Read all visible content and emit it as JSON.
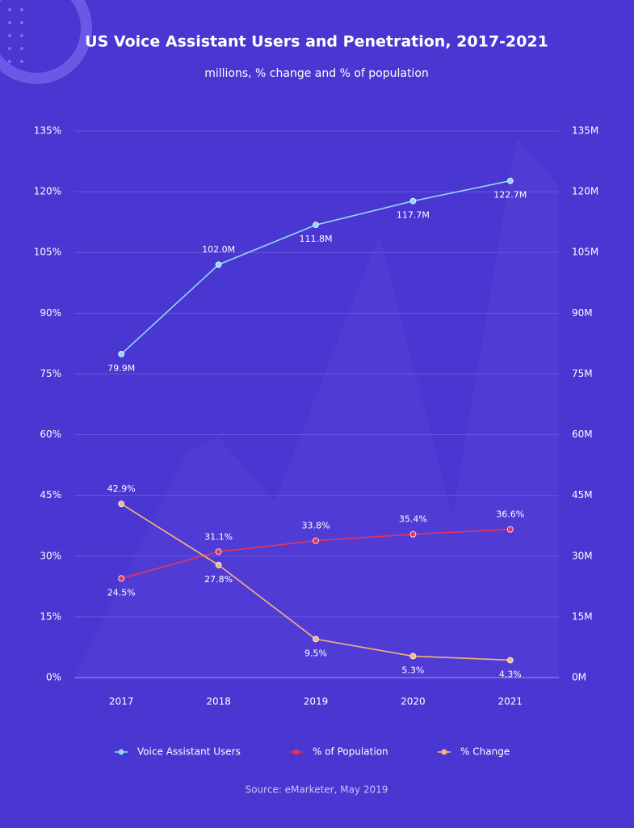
{
  "chart_data": {
    "type": "line",
    "title": "US Voice Assistant Users and Penetration, 2017-2021",
    "subtitle": "millions, % change and % of population",
    "source": "Source: eMarketer, May 2019",
    "categories": [
      "2017",
      "2018",
      "2019",
      "2020",
      "2021"
    ],
    "series": [
      {
        "name": "Voice Assistant Users",
        "color": "#8fd8f7",
        "axis": "y2",
        "values": [
          79.9,
          102.0,
          111.8,
          117.7,
          122.7
        ],
        "value_labels": [
          "79.9M",
          "102.0M",
          "111.8M",
          "117.7M",
          "122.7M"
        ]
      },
      {
        "name": "% of Population",
        "color": "#e8335a",
        "values": [
          24.5,
          31.1,
          33.8,
          35.4,
          36.6
        ],
        "value_labels": [
          "24.5%",
          "31.1%",
          "33.8%",
          "35.4%",
          "36.6%"
        ]
      },
      {
        "name": "% Change",
        "color": "#f5b57a",
        "values": [
          42.9,
          27.8,
          9.5,
          5.3,
          4.3
        ],
        "value_labels": [
          "42.9%",
          "27.8%",
          "9.5%",
          "5.3%",
          "4.3%"
        ]
      }
    ],
    "ylim": [
      0,
      135
    ],
    "yticks": [
      {
        "value": 0,
        "label": "0%"
      },
      {
        "value": 15,
        "label": "15%"
      },
      {
        "value": 30,
        "label": "30%"
      },
      {
        "value": 45,
        "label": "45%"
      },
      {
        "value": 60,
        "label": "60%"
      },
      {
        "value": 75,
        "label": "75%"
      },
      {
        "value": 90,
        "label": "90%"
      },
      {
        "value": 105,
        "label": "105%"
      },
      {
        "value": 120,
        "label": "120%"
      },
      {
        "value": 135,
        "label": "135%"
      }
    ],
    "y2lim": [
      0,
      135
    ],
    "y2ticks": [
      {
        "value": 0,
        "label": "0M"
      },
      {
        "value": 15,
        "label": "15M"
      },
      {
        "value": 30,
        "label": "30M"
      },
      {
        "value": 45,
        "label": "45M"
      },
      {
        "value": 60,
        "label": "60M"
      },
      {
        "value": 75,
        "label": "75M"
      },
      {
        "value": 90,
        "label": "90M"
      },
      {
        "value": 105,
        "label": "105M"
      },
      {
        "value": 120,
        "label": "120M"
      },
      {
        "value": 135,
        "label": "135M"
      }
    ],
    "grid": true
  }
}
